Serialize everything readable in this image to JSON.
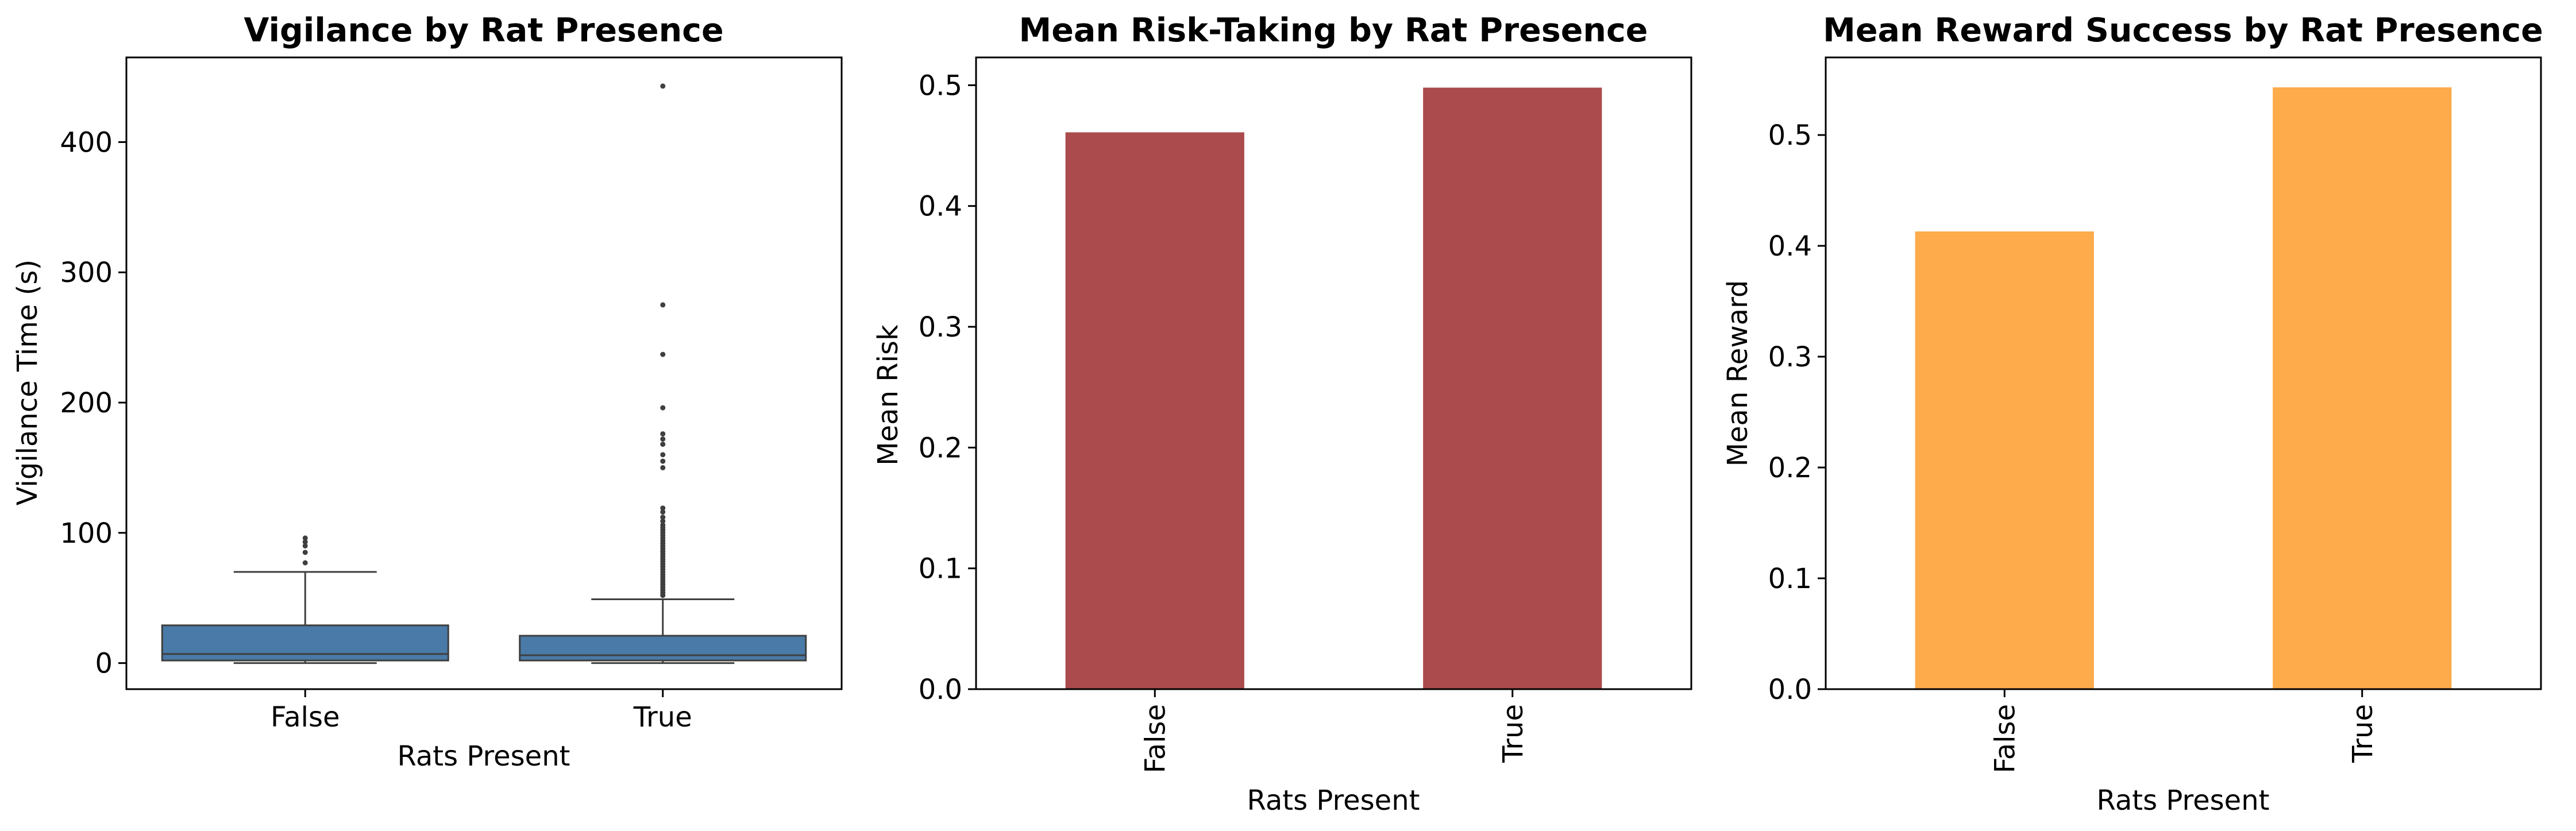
{
  "chart_data": [
    {
      "type": "box",
      "title": "Vigilance by Rat Presence",
      "xlabel": "Rats Present",
      "ylabel": "Vigilance Time (s)",
      "categories": [
        "False",
        "True"
      ],
      "ylim": [
        -20,
        465
      ],
      "yticks": [
        0,
        100,
        200,
        300,
        400
      ],
      "ytick_labels": [
        "0",
        "100",
        "200",
        "300",
        "400"
      ],
      "color": "#4a7aa7",
      "grid": false,
      "boxes": [
        {
          "category": "False",
          "whisker_low": 0,
          "q1": 2,
          "median": 7,
          "q3": 29,
          "whisker_high": 70,
          "outliers": [
            77,
            85,
            90,
            93,
            96
          ]
        },
        {
          "category": "True",
          "whisker_low": 0,
          "q1": 2,
          "median": 6,
          "q3": 21,
          "whisker_high": 49,
          "outliers": [
            52,
            54,
            56,
            58,
            60,
            62,
            64,
            66,
            68,
            70,
            72,
            74,
            76,
            78,
            80,
            82,
            84,
            86,
            88,
            90,
            92,
            94,
            96,
            98,
            100,
            102,
            104,
            106,
            109,
            112,
            116,
            119,
            150,
            155,
            160,
            168,
            172,
            176,
            196,
            237,
            275,
            443
          ]
        }
      ]
    },
    {
      "type": "bar",
      "title": "Mean Risk-Taking by Rat Presence",
      "xlabel": "Rats Present",
      "ylabel": "Mean Risk",
      "categories": [
        "False",
        "True"
      ],
      "values": [
        0.461,
        0.498
      ],
      "ylim": [
        0,
        0.523
      ],
      "yticks": [
        0.0,
        0.1,
        0.2,
        0.3,
        0.4,
        0.5
      ],
      "ytick_labels": [
        "0.0",
        "0.1",
        "0.2",
        "0.3",
        "0.4",
        "0.5"
      ],
      "color": "#ab4b4d",
      "grid": false,
      "xtick_rotation": 90
    },
    {
      "type": "bar",
      "title": "Mean Reward Success by Rat Presence",
      "xlabel": "Rats Present",
      "ylabel": "Mean Reward",
      "categories": [
        "False",
        "True"
      ],
      "values": [
        0.413,
        0.543
      ],
      "ylim": [
        0,
        0.57
      ],
      "yticks": [
        0.0,
        0.1,
        0.2,
        0.3,
        0.4,
        0.5
      ],
      "ytick_labels": [
        "0.0",
        "0.1",
        "0.2",
        "0.3",
        "0.4",
        "0.5"
      ],
      "color": "#fdab4b",
      "grid": false,
      "xtick_rotation": 90
    }
  ]
}
